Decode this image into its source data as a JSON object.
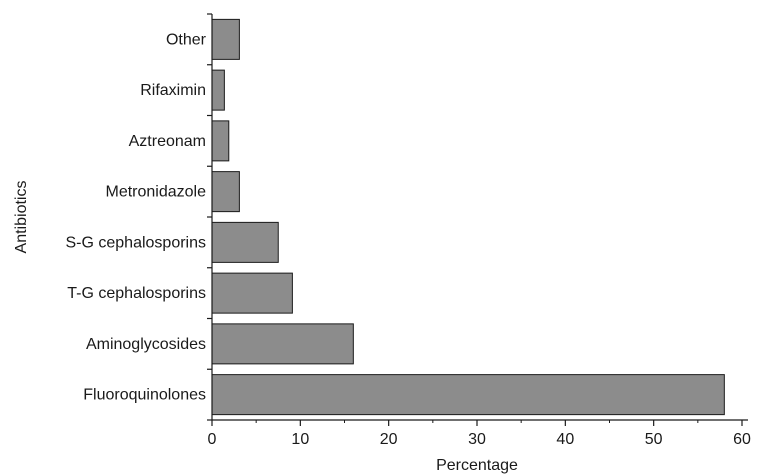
{
  "chart_data": {
    "type": "bar",
    "orientation": "horizontal",
    "categories": [
      "Fluoroquinolones",
      "Aminoglycosides",
      "T-G cephalosporins",
      "S-G cephalosporins",
      "Metronidazole",
      "Aztreonam",
      "Rifaximin",
      "Other"
    ],
    "values": [
      58,
      16,
      9.1,
      7.5,
      3.1,
      1.9,
      1.4,
      3.1
    ],
    "xlabel": "Percentage",
    "ylabel": "Antibiotics",
    "xlim": [
      0,
      60
    ],
    "xticks": [
      0,
      10,
      20,
      30,
      40,
      50,
      60
    ],
    "grid": false,
    "legend": "none",
    "colors": {
      "bar_fill": "#8c8c8c",
      "bar_stroke": "#1a1a1a",
      "axis": "#1a1a1a"
    }
  }
}
